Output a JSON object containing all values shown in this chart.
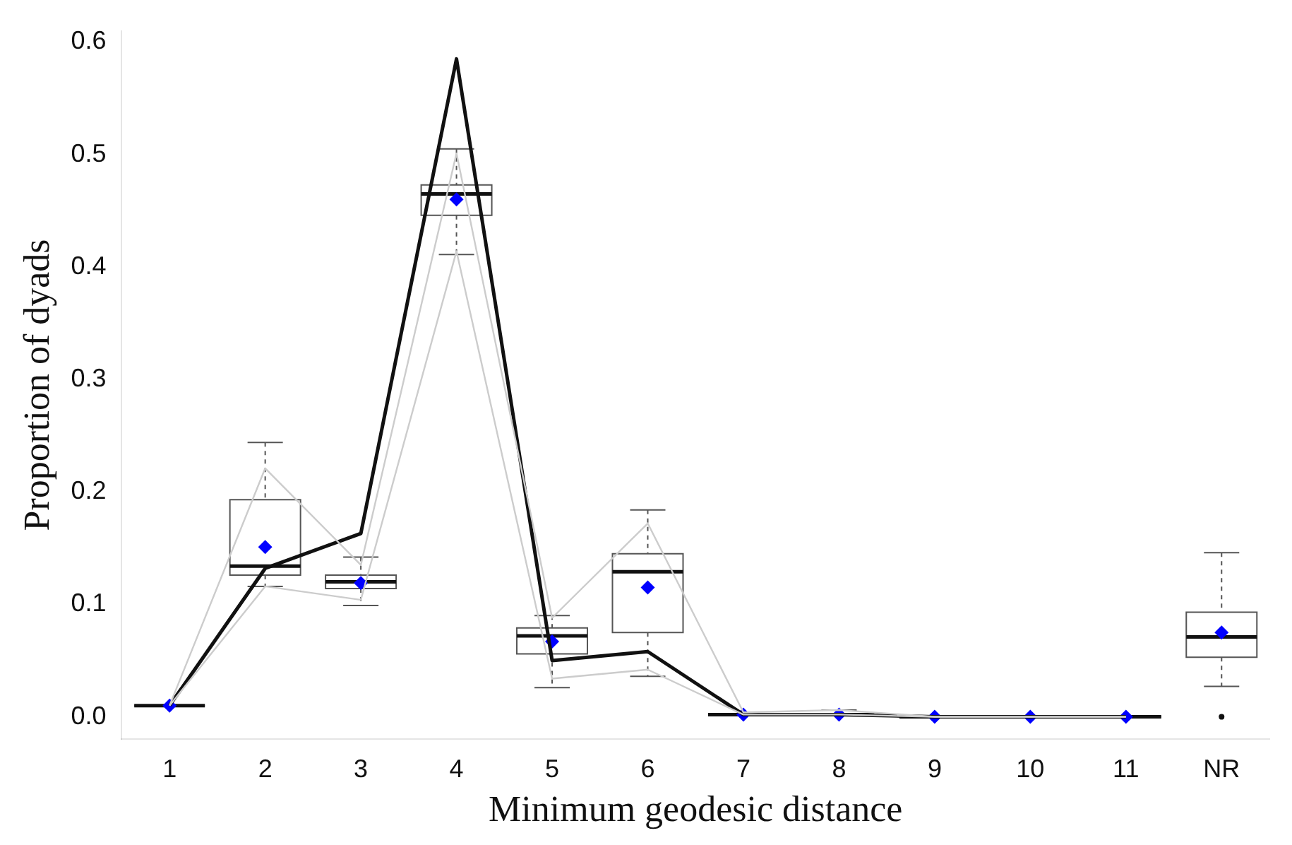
{
  "chart_data": {
    "type": "box",
    "xlabel": "Minimum geodesic distance",
    "ylabel": "Proportion of dyads",
    "categories": [
      "1",
      "2",
      "3",
      "4",
      "5",
      "6",
      "7",
      "8",
      "9",
      "10",
      "11",
      "NR"
    ],
    "boxes": [
      {
        "low": 0.01,
        "q1": 0.01,
        "median": 0.01,
        "q3": 0.01,
        "high": 0.01,
        "mean": 0.01
      },
      {
        "low": 0.116,
        "q1": 0.126,
        "median": 0.134,
        "q3": 0.193,
        "high": 0.244,
        "mean": 0.151
      },
      {
        "low": 0.099,
        "q1": 0.114,
        "median": 0.12,
        "q3": 0.126,
        "high": 0.142,
        "mean": 0.119
      },
      {
        "low": 0.411,
        "q1": 0.446,
        "median": 0.465,
        "q3": 0.473,
        "high": 0.505,
        "mean": 0.46
      },
      {
        "low": 0.026,
        "q1": 0.056,
        "median": 0.072,
        "q3": 0.079,
        "high": 0.09,
        "mean": 0.067
      },
      {
        "low": 0.036,
        "q1": 0.075,
        "median": 0.129,
        "q3": 0.145,
        "high": 0.184,
        "mean": 0.115
      },
      {
        "low": 0.002,
        "q1": 0.002,
        "median": 0.002,
        "q3": 0.002,
        "high": 0.002,
        "mean": 0.002
      },
      {
        "low": 0.002,
        "q1": 0.002,
        "median": 0.002,
        "q3": 0.002,
        "high": 0.006,
        "mean": 0.002
      },
      {
        "low": 0,
        "q1": 0,
        "median": 0,
        "q3": 0,
        "high": 0,
        "mean": 0
      },
      {
        "low": 0,
        "q1": 0,
        "median": 0,
        "q3": 0,
        "high": 0,
        "mean": 0
      },
      {
        "low": 0,
        "q1": 0,
        "median": 0,
        "q3": 0,
        "high": 0,
        "mean": 0
      },
      {
        "low": 0.027,
        "q1": 0.053,
        "median": 0.071,
        "q3": 0.093,
        "high": 0.146,
        "mean": 0.075,
        "outliers": [
          0
        ]
      }
    ],
    "series": [
      {
        "type": "line",
        "color": "#cccccc",
        "values": [
          0.01,
          0.221,
          0.135,
          0.501,
          0.088,
          0.172,
          0.004,
          0.006,
          0,
          0,
          0,
          null
        ]
      },
      {
        "type": "line",
        "color": "#cccccc",
        "values": [
          0.01,
          0.116,
          0.104,
          0.414,
          0.034,
          0.042,
          0.002,
          0.002,
          0,
          0,
          0,
          null
        ]
      },
      {
        "type": "line",
        "color": "#111111",
        "values": [
          0.01,
          0.132,
          0.163,
          0.585,
          0.05,
          0.058,
          0.002,
          0.002,
          0,
          0,
          0,
          null
        ]
      }
    ],
    "ylim": [
      -0.02,
      0.61
    ],
    "yticks": [
      {
        "value": 0,
        "label": "0.0"
      },
      0.1,
      0.2,
      0.3,
      0.4,
      0.5,
      0.6
    ],
    "color": "#555555",
    "grid": false,
    "legend": false,
    "marker": "none"
  }
}
